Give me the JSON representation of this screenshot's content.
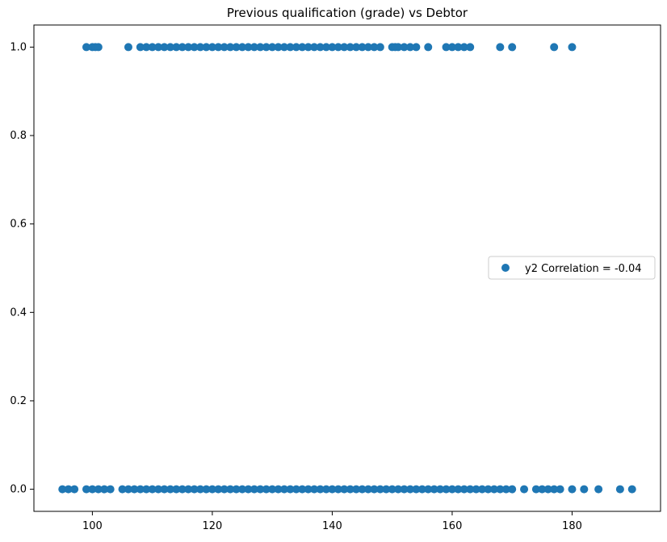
{
  "chart_data": {
    "type": "scatter",
    "title": "Previous qualification (grade) vs Debtor",
    "xlabel": "",
    "ylabel": "",
    "xlim": [
      90.25,
      194.75
    ],
    "ylim": [
      -0.05,
      1.05
    ],
    "xticks": [
      100,
      120,
      140,
      160,
      180
    ],
    "xtick_labels": [
      "100",
      "120",
      "140",
      "160",
      "180"
    ],
    "yticks": [
      0.0,
      0.2,
      0.4,
      0.6,
      0.8,
      1.0
    ],
    "ytick_labels": [
      "0.0",
      "0.2",
      "0.4",
      "0.6",
      "0.8",
      "1.0"
    ],
    "grid": false,
    "legend_position": "center-right",
    "color": "#1f77b4",
    "series": [
      {
        "name": "y2 Correlation = -0.04",
        "points": [
          [
            99,
            1
          ],
          [
            100,
            1
          ],
          [
            100.5,
            1
          ],
          [
            101,
            1
          ],
          [
            106,
            1
          ],
          [
            108,
            1
          ],
          [
            109,
            1
          ],
          [
            110,
            1
          ],
          [
            111,
            1
          ],
          [
            112,
            1
          ],
          [
            113,
            1
          ],
          [
            114,
            1
          ],
          [
            115,
            1
          ],
          [
            116,
            1
          ],
          [
            117,
            1
          ],
          [
            118,
            1
          ],
          [
            119,
            1
          ],
          [
            120,
            1
          ],
          [
            121,
            1
          ],
          [
            122,
            1
          ],
          [
            123,
            1
          ],
          [
            124,
            1
          ],
          [
            125,
            1
          ],
          [
            126,
            1
          ],
          [
            127,
            1
          ],
          [
            128,
            1
          ],
          [
            129,
            1
          ],
          [
            130,
            1
          ],
          [
            131,
            1
          ],
          [
            132,
            1
          ],
          [
            133,
            1
          ],
          [
            134,
            1
          ],
          [
            135,
            1
          ],
          [
            136,
            1
          ],
          [
            137,
            1
          ],
          [
            138,
            1
          ],
          [
            139,
            1
          ],
          [
            140,
            1
          ],
          [
            141,
            1
          ],
          [
            142,
            1
          ],
          [
            143,
            1
          ],
          [
            144,
            1
          ],
          [
            145,
            1
          ],
          [
            146,
            1
          ],
          [
            147,
            1
          ],
          [
            148,
            1
          ],
          [
            150,
            1
          ],
          [
            150.5,
            1
          ],
          [
            151,
            1
          ],
          [
            152,
            1
          ],
          [
            153,
            1
          ],
          [
            154,
            1
          ],
          [
            156,
            1
          ],
          [
            159,
            1
          ],
          [
            160,
            1
          ],
          [
            161,
            1
          ],
          [
            162,
            1
          ],
          [
            163,
            1
          ],
          [
            168,
            1
          ],
          [
            170,
            1
          ],
          [
            177,
            1
          ],
          [
            180,
            1
          ],
          [
            95,
            0
          ],
          [
            96,
            0
          ],
          [
            97,
            0
          ],
          [
            99,
            0
          ],
          [
            100,
            0
          ],
          [
            101,
            0
          ],
          [
            102,
            0
          ],
          [
            103,
            0
          ],
          [
            105,
            0
          ],
          [
            106,
            0
          ],
          [
            107,
            0
          ],
          [
            108,
            0
          ],
          [
            109,
            0
          ],
          [
            110,
            0
          ],
          [
            111,
            0
          ],
          [
            112,
            0
          ],
          [
            113,
            0
          ],
          [
            114,
            0
          ],
          [
            115,
            0
          ],
          [
            116,
            0
          ],
          [
            117,
            0
          ],
          [
            118,
            0
          ],
          [
            119,
            0
          ],
          [
            120,
            0
          ],
          [
            121,
            0
          ],
          [
            122,
            0
          ],
          [
            123,
            0
          ],
          [
            124,
            0
          ],
          [
            125,
            0
          ],
          [
            126,
            0
          ],
          [
            127,
            0
          ],
          [
            128,
            0
          ],
          [
            129,
            0
          ],
          [
            130,
            0
          ],
          [
            131,
            0
          ],
          [
            132,
            0
          ],
          [
            133,
            0
          ],
          [
            134,
            0
          ],
          [
            135,
            0
          ],
          [
            136,
            0
          ],
          [
            137,
            0
          ],
          [
            138,
            0
          ],
          [
            139,
            0
          ],
          [
            140,
            0
          ],
          [
            141,
            0
          ],
          [
            142,
            0
          ],
          [
            143,
            0
          ],
          [
            144,
            0
          ],
          [
            145,
            0
          ],
          [
            146,
            0
          ],
          [
            147,
            0
          ],
          [
            148,
            0
          ],
          [
            149,
            0
          ],
          [
            150,
            0
          ],
          [
            151,
            0
          ],
          [
            152,
            0
          ],
          [
            153,
            0
          ],
          [
            154,
            0
          ],
          [
            155,
            0
          ],
          [
            156,
            0
          ],
          [
            157,
            0
          ],
          [
            158,
            0
          ],
          [
            159,
            0
          ],
          [
            160,
            0
          ],
          [
            161,
            0
          ],
          [
            162,
            0
          ],
          [
            163,
            0
          ],
          [
            164,
            0
          ],
          [
            165,
            0
          ],
          [
            166,
            0
          ],
          [
            167,
            0
          ],
          [
            168,
            0
          ],
          [
            169,
            0
          ],
          [
            170,
            0
          ],
          [
            172,
            0
          ],
          [
            174,
            0
          ],
          [
            175,
            0
          ],
          [
            176,
            0
          ],
          [
            177,
            0
          ],
          [
            178,
            0
          ],
          [
            180,
            0
          ],
          [
            182,
            0
          ],
          [
            184.4,
            0
          ],
          [
            188,
            0
          ],
          [
            190,
            0
          ]
        ]
      }
    ]
  }
}
